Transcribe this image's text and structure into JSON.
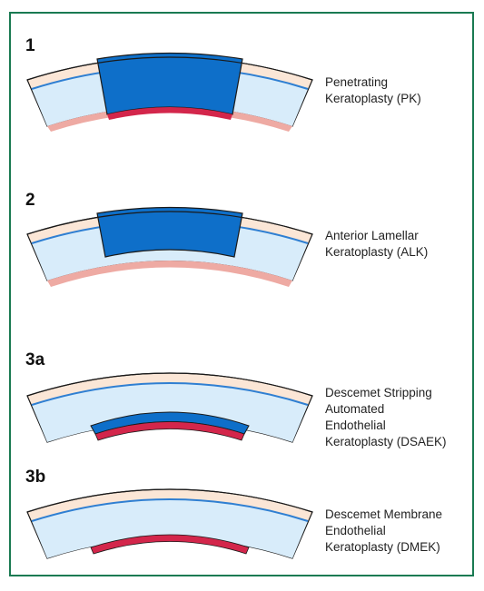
{
  "colors": {
    "frame_border": "#1a7a52",
    "cornea_outer": "#fbe6d6",
    "stroma": "#d8ecfa",
    "outline": "#1a1a1a",
    "descemet_line": "#2f7fd2",
    "graft_stroma": "#0e6fc9",
    "endothelium_graft": "#d3264b",
    "endothelium_host": "#eeaaa3"
  },
  "panels": [
    {
      "number": "1",
      "label": "Penetrating\nKeratoplasty (PK)"
    },
    {
      "number": "2",
      "label": "Anterior Lamellar\nKeratoplasty (ALK)"
    },
    {
      "number": "3a",
      "label": "Descemet Stripping\nAutomated\nEndothelial\nKeratoplasty (DSAEK)"
    },
    {
      "number": "3b",
      "label": "Descemet Membrane\nEndothelial\nKeratoplasty (DMEK)"
    }
  ]
}
